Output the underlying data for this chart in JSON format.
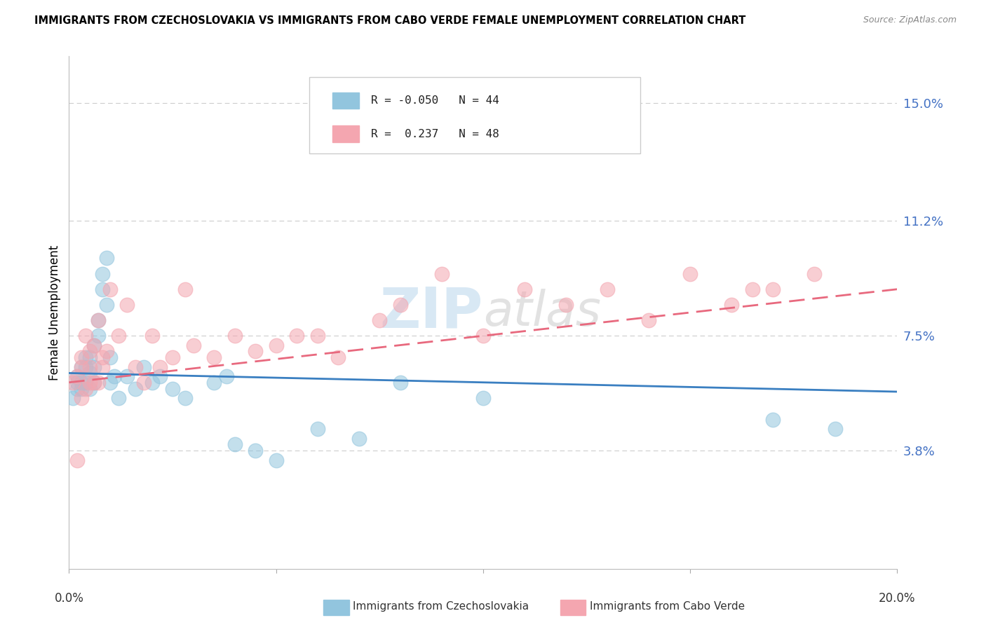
{
  "title": "IMMIGRANTS FROM CZECHOSLOVAKIA VS IMMIGRANTS FROM CABO VERDE FEMALE UNEMPLOYMENT CORRELATION CHART",
  "source": "Source: ZipAtlas.com",
  "ylabel": "Female Unemployment",
  "y_tick_labels": [
    "3.8%",
    "7.5%",
    "11.2%",
    "15.0%"
  ],
  "y_tick_values": [
    0.038,
    0.075,
    0.112,
    0.15
  ],
  "x_lim": [
    0.0,
    0.2
  ],
  "y_lim": [
    0.0,
    0.165
  ],
  "series1_color": "#92c5de",
  "series2_color": "#f4a6b0",
  "trend1_color": "#3a7fc1",
  "trend2_color": "#e8697e",
  "watermark": "ZIPAtlas",
  "series1_label": "Immigrants from Czechoslovakia",
  "series2_label": "Immigrants from Cabo Verde",
  "series1_x": [
    0.001,
    0.002,
    0.002,
    0.002,
    0.003,
    0.003,
    0.003,
    0.004,
    0.004,
    0.004,
    0.005,
    0.005,
    0.005,
    0.006,
    0.006,
    0.006,
    0.007,
    0.007,
    0.008,
    0.008,
    0.009,
    0.009,
    0.01,
    0.01,
    0.011,
    0.012,
    0.014,
    0.016,
    0.018,
    0.02,
    0.022,
    0.025,
    0.028,
    0.035,
    0.038,
    0.04,
    0.045,
    0.05,
    0.06,
    0.07,
    0.08,
    0.1,
    0.17,
    0.185
  ],
  "series1_y": [
    0.055,
    0.06,
    0.058,
    0.062,
    0.058,
    0.065,
    0.06,
    0.068,
    0.06,
    0.065,
    0.068,
    0.058,
    0.063,
    0.072,
    0.065,
    0.06,
    0.08,
    0.075,
    0.09,
    0.095,
    0.1,
    0.085,
    0.068,
    0.06,
    0.062,
    0.055,
    0.062,
    0.058,
    0.065,
    0.06,
    0.062,
    0.058,
    0.055,
    0.06,
    0.062,
    0.04,
    0.038,
    0.035,
    0.045,
    0.042,
    0.06,
    0.055,
    0.048,
    0.045
  ],
  "series2_x": [
    0.001,
    0.002,
    0.002,
    0.003,
    0.003,
    0.003,
    0.004,
    0.004,
    0.005,
    0.005,
    0.005,
    0.006,
    0.006,
    0.007,
    0.007,
    0.008,
    0.008,
    0.009,
    0.01,
    0.012,
    0.014,
    0.016,
    0.018,
    0.02,
    0.022,
    0.025,
    0.028,
    0.03,
    0.035,
    0.04,
    0.045,
    0.05,
    0.055,
    0.06,
    0.065,
    0.075,
    0.08,
    0.09,
    0.1,
    0.11,
    0.12,
    0.13,
    0.14,
    0.15,
    0.16,
    0.165,
    0.17,
    0.18
  ],
  "series2_y": [
    0.06,
    0.062,
    0.035,
    0.068,
    0.055,
    0.065,
    0.058,
    0.075,
    0.065,
    0.06,
    0.07,
    0.072,
    0.06,
    0.08,
    0.06,
    0.068,
    0.065,
    0.07,
    0.09,
    0.075,
    0.085,
    0.065,
    0.06,
    0.075,
    0.065,
    0.068,
    0.09,
    0.072,
    0.068,
    0.075,
    0.07,
    0.072,
    0.075,
    0.075,
    0.068,
    0.08,
    0.085,
    0.095,
    0.075,
    0.09,
    0.085,
    0.09,
    0.08,
    0.095,
    0.085,
    0.09,
    0.09,
    0.095
  ],
  "trend1_x_start": 0.0,
  "trend1_x_end": 0.2,
  "trend1_y_start": 0.063,
  "trend1_y_end": 0.057,
  "trend2_x_start": 0.0,
  "trend2_x_end": 0.2,
  "trend2_y_start": 0.06,
  "trend2_y_end": 0.09
}
